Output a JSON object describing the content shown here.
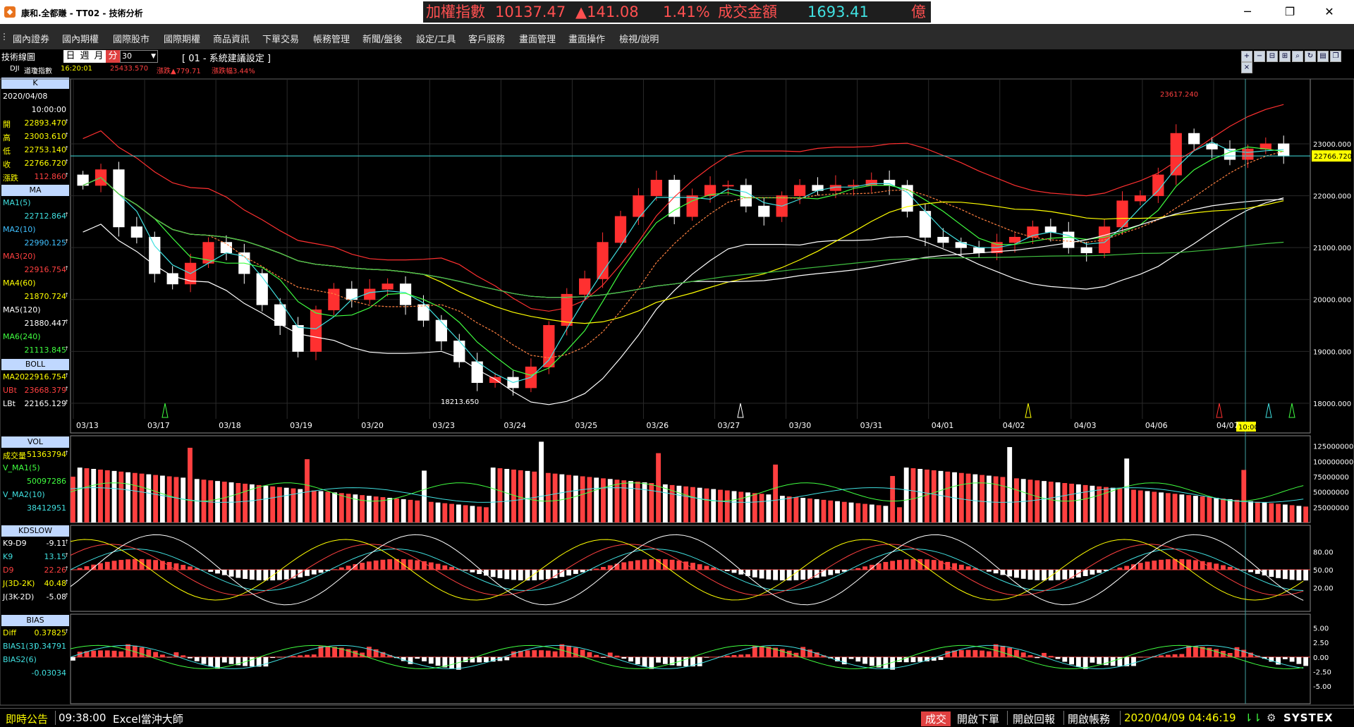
{
  "window": {
    "title": "康和.全都賺 - TT02 - 技術分析",
    "app_icon": "kanghe-logo-icon",
    "controls": [
      "minimize",
      "maximize",
      "close"
    ]
  },
  "ticker": {
    "name": "加權指數",
    "index_value": "10137.47",
    "change": "▲141.08",
    "change_pct": "1.41%",
    "turnover_label": "成交金額",
    "turnover_value": "1693.41",
    "turnover_unit": "億",
    "colors": {
      "name": "#ff5050",
      "value": "#ff5050",
      "turnover_label": "#ff5050",
      "turnover_value": "#40e0e0",
      "unit": "#ff5050"
    }
  },
  "menu": {
    "items": [
      "國內證券",
      "國內期權",
      "國際股市",
      "國際期權",
      "商品資訊",
      "下單交易",
      "帳務管理",
      "新聞/盤後",
      "設定/工具",
      "客戶服務",
      "畫面管理",
      "畫面操作",
      "檢視/說明"
    ]
  },
  "toolbar": {
    "title": "技術線圖",
    "periods": [
      "日",
      "週",
      "月",
      "分"
    ],
    "active_period": "分",
    "interval_value": "30",
    "system_setting": "[ 01 - 系統建議設定 ]",
    "symbol_code": "DJI",
    "symbol_name": "道瓊指數",
    "time": "16:20:01",
    "last": "25433.570",
    "change": "漲跌▲779.71",
    "change_pct": "漲跌幅3.44%",
    "right_icons": [
      "add-window-icon",
      "minus-icon",
      "zoom-out-icon",
      "zoom-in-icon",
      "search-icon",
      "refresh-icon",
      "print-icon",
      "restore-icon",
      "close-icon"
    ]
  },
  "sidebar": {
    "k": {
      "header": "K",
      "date": "2020/04/08",
      "time": "10:00:00",
      "rows": [
        {
          "label": "開",
          "value": "22893.470",
          "color": "#ffff00"
        },
        {
          "label": "高",
          "value": "23003.610",
          "color": "#ffff00"
        },
        {
          "label": "低",
          "value": "22753.140",
          "color": "#ffff00"
        },
        {
          "label": "收",
          "value": "22766.720",
          "color": "#ffff00"
        },
        {
          "label": "漲跌",
          "value": "112.860",
          "color": "#ff4040"
        }
      ]
    },
    "ma": {
      "header": "MA",
      "rows": [
        {
          "label": "MA1(5)",
          "value": "22712.864",
          "color": "#40e0e0"
        },
        {
          "label": "MA2(10)",
          "value": "22990.125",
          "color": "#40c0ff"
        },
        {
          "label": "MA3(20)",
          "value": "22916.754",
          "color": "#ff4040"
        },
        {
          "label": "MA4(60)",
          "value": "21870.724",
          "color": "#ffff00"
        },
        {
          "label": "MA5(120)",
          "value": "21880.447",
          "color": "#ffffff"
        },
        {
          "label": "MA6(240)",
          "value": "21113.845",
          "color": "#40ff40"
        }
      ]
    },
    "boll": {
      "header": "BOLL",
      "rows": [
        {
          "label": "MA20",
          "value": "22916.754",
          "color": "#ffff00"
        },
        {
          "label": "UBt",
          "value": "23668.379",
          "color": "#ff4040"
        },
        {
          "label": "LBt",
          "value": "22165.129",
          "color": "#ffffff"
        }
      ]
    },
    "vol": {
      "header": "VOL",
      "rows": [
        {
          "label": "成交量",
          "value": "51363794",
          "color": "#ffff00"
        },
        {
          "label": "V_MA1(5)",
          "value": "50097286",
          "color": "#40ff40"
        },
        {
          "label": "V_MA2(10)",
          "value": "38412951",
          "color": "#40e0e0"
        }
      ]
    },
    "kd": {
      "header": "KDSLOW",
      "rows": [
        {
          "label": "K9-D9",
          "value": "-9.11",
          "color": "#ffffff"
        },
        {
          "label": "K9",
          "value": "13.15",
          "color": "#40e0e0"
        },
        {
          "label": "D9",
          "value": "22.26",
          "color": "#ff4040"
        },
        {
          "label": "J(3D-2K)",
          "value": "40.48",
          "color": "#ffff00"
        },
        {
          "label": "J(3K-2D)",
          "value": "-5.08",
          "color": "#ffffff"
        }
      ]
    },
    "bias": {
      "header": "BIAS",
      "rows": [
        {
          "label": "Diff",
          "value": "0.37825",
          "color": "#ffff00"
        },
        {
          "label": "BIAS1(3)",
          "value": "0.34791",
          "color": "#40e0e0"
        },
        {
          "label": "BIAS2(6)",
          "value": "-0.03034",
          "color": "#40e0e0"
        }
      ]
    }
  },
  "chart_data": [
    {
      "type": "candlestick",
      "title": "",
      "x_dates": [
        "03/13",
        "03/17",
        "03/18",
        "03/19",
        "03/20",
        "03/23",
        "03/24",
        "03/25",
        "03/26",
        "03/27",
        "03/30",
        "03/31",
        "04/01",
        "04/02",
        "04/03",
        "04/06",
        "04/07"
      ],
      "y_ticks": [
        "23000.000",
        "22000.000",
        "21000.000",
        "20000.000",
        "19000.000",
        "18000.000"
      ],
      "ylim": [
        17700,
        24250
      ],
      "current_price": "22766.720",
      "high_label": "23617.240",
      "low_label": "18213.650",
      "cursor_time": "10:00",
      "close_series": [
        22200,
        22500,
        21400,
        21200,
        20500,
        20300,
        20700,
        21100,
        20900,
        20500,
        19900,
        19500,
        19000,
        19800,
        20200,
        20000,
        20200,
        20300,
        19900,
        19600,
        19200,
        18800,
        18400,
        18500,
        18300,
        18700,
        19500,
        20100,
        20400,
        21100,
        21600,
        22000,
        22300,
        21600,
        22000,
        22200,
        22200,
        21800,
        21600,
        22000,
        22200,
        22100,
        22200,
        22200,
        22300,
        22200,
        21700,
        21200,
        21100,
        21000,
        20900,
        21100,
        21200,
        21400,
        21300,
        21000,
        20900,
        21400,
        21900,
        22000,
        22400,
        23200,
        23000,
        22900,
        22700,
        22900,
        23000,
        22766
      ]
    },
    {
      "type": "bar",
      "title": "VOL",
      "y_ticks": [
        "125000000",
        "100000000",
        "75000000",
        "50000000",
        "25000000"
      ],
      "ylim": [
        0,
        135000000
      ]
    },
    {
      "type": "line",
      "title": "KDSLOW",
      "y_ticks": [
        "80.00",
        "50.00",
        "20.00"
      ],
      "ylim": [
        -20,
        120
      ]
    },
    {
      "type": "bar",
      "title": "BIAS",
      "y_ticks": [
        "5.00",
        "2.50",
        "0.00",
        "-2.50",
        "-5.00"
      ],
      "ylim": [
        -8,
        7
      ]
    }
  ],
  "statusbar": {
    "notice_label": "即時公告",
    "notice_time": "09:38:00",
    "notice_text": "Excel當沖大師",
    "trade_label": "成交",
    "buttons": [
      "開啟下單",
      "開啟回報",
      "開啟帳務"
    ],
    "datetime": "2020/04/09 04:46:19",
    "brand": "SYSTEX"
  }
}
